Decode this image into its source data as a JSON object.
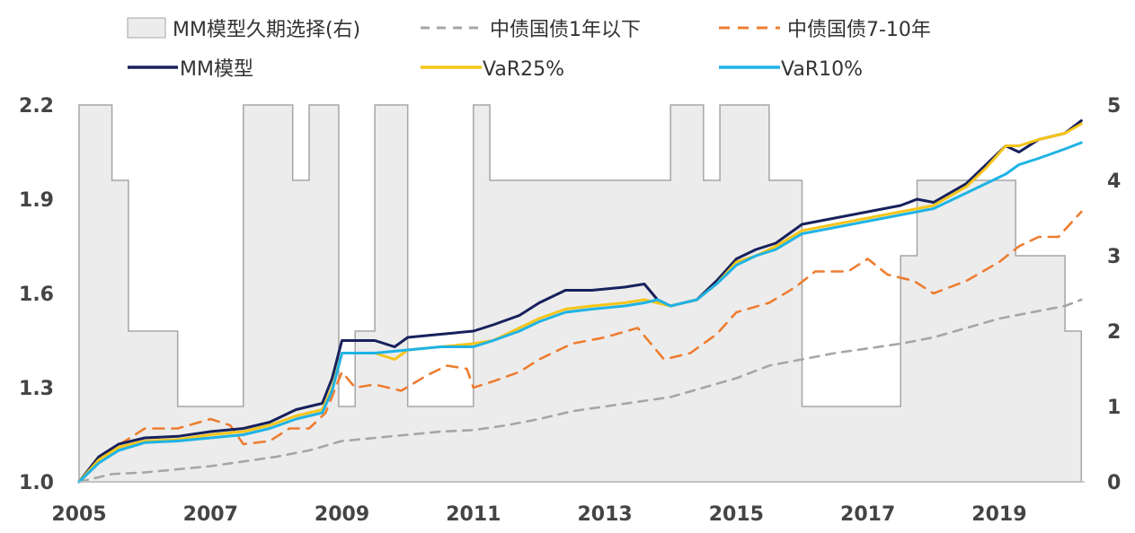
{
  "chart_data": {
    "type": "line",
    "left_axis": {
      "min": 1.0,
      "max": 2.2,
      "ticks": [
        1.0,
        1.3,
        1.6,
        1.9,
        2.2
      ],
      "tick_labels": [
        "1.0",
        "1.3",
        "1.6",
        "1.9",
        "2.2"
      ]
    },
    "right_axis": {
      "min": 0,
      "max": 5,
      "ticks": [
        0,
        1,
        2,
        3,
        4,
        5
      ],
      "tick_labels": [
        "0",
        "1",
        "2",
        "3",
        "4",
        "5"
      ]
    },
    "x_axis": {
      "min": 2005.0,
      "max": 2020.3,
      "ticks": [
        2005,
        2007,
        2009,
        2011,
        2013,
        2015,
        2017,
        2019
      ],
      "tick_labels": [
        "2005",
        "2007",
        "2009",
        "2011",
        "2013",
        "2015",
        "2017",
        "2019"
      ]
    },
    "legend": {
      "placement": "top"
    },
    "series": [
      {
        "name": "MM模型久期选择(右)",
        "kind": "step-area",
        "axis": "right",
        "color": "#ececec",
        "stroke": "#a6a6a6",
        "points": [
          [
            2005.0,
            0
          ],
          [
            2005.0,
            5
          ],
          [
            2005.5,
            5
          ],
          [
            2005.5,
            4
          ],
          [
            2005.75,
            4
          ],
          [
            2005.75,
            2
          ],
          [
            2006.5,
            2
          ],
          [
            2006.5,
            1
          ],
          [
            2007.5,
            1
          ],
          [
            2007.5,
            5
          ],
          [
            2008.25,
            5
          ],
          [
            2008.25,
            4
          ],
          [
            2008.5,
            4
          ],
          [
            2008.5,
            5
          ],
          [
            2008.95,
            5
          ],
          [
            2008.95,
            1
          ],
          [
            2009.2,
            1
          ],
          [
            2009.2,
            2
          ],
          [
            2009.5,
            2
          ],
          [
            2009.5,
            5
          ],
          [
            2010.0,
            5
          ],
          [
            2010.0,
            1
          ],
          [
            2011.0,
            1
          ],
          [
            2011.0,
            5
          ],
          [
            2011.25,
            5
          ],
          [
            2011.25,
            4
          ],
          [
            2014.0,
            4
          ],
          [
            2014.0,
            5
          ],
          [
            2014.5,
            5
          ],
          [
            2014.5,
            4
          ],
          [
            2014.75,
            4
          ],
          [
            2014.75,
            5
          ],
          [
            2015.5,
            5
          ],
          [
            2015.5,
            4
          ],
          [
            2016.0,
            4
          ],
          [
            2016.0,
            1
          ],
          [
            2017.5,
            1
          ],
          [
            2017.5,
            3
          ],
          [
            2017.75,
            3
          ],
          [
            2017.75,
            4
          ],
          [
            2019.25,
            4
          ],
          [
            2019.25,
            3
          ],
          [
            2020.0,
            3
          ],
          [
            2020.0,
            2
          ],
          [
            2020.25,
            2
          ],
          [
            2020.25,
            0
          ]
        ]
      },
      {
        "name": "中债国债1年以下",
        "kind": "line",
        "axis": "left",
        "color": "#a6a6a6",
        "dash": "10,8",
        "points": [
          [
            2005.0,
            1.0
          ],
          [
            2005.5,
            1.025
          ],
          [
            2006.0,
            1.03
          ],
          [
            2006.5,
            1.04
          ],
          [
            2007.0,
            1.05
          ],
          [
            2007.5,
            1.065
          ],
          [
            2008.0,
            1.08
          ],
          [
            2008.5,
            1.1
          ],
          [
            2009.0,
            1.13
          ],
          [
            2009.5,
            1.14
          ],
          [
            2010.0,
            1.15
          ],
          [
            2010.5,
            1.16
          ],
          [
            2011.0,
            1.165
          ],
          [
            2011.5,
            1.18
          ],
          [
            2012.0,
            1.2
          ],
          [
            2012.5,
            1.225
          ],
          [
            2013.0,
            1.24
          ],
          [
            2013.5,
            1.255
          ],
          [
            2014.0,
            1.27
          ],
          [
            2014.5,
            1.3
          ],
          [
            2015.0,
            1.33
          ],
          [
            2015.5,
            1.37
          ],
          [
            2016.0,
            1.39
          ],
          [
            2016.5,
            1.41
          ],
          [
            2017.0,
            1.425
          ],
          [
            2017.5,
            1.44
          ],
          [
            2018.0,
            1.46
          ],
          [
            2018.5,
            1.49
          ],
          [
            2019.0,
            1.52
          ],
          [
            2019.5,
            1.54
          ],
          [
            2020.0,
            1.56
          ],
          [
            2020.25,
            1.58
          ]
        ]
      },
      {
        "name": "中债国债7-10年",
        "kind": "line",
        "axis": "left",
        "color": "#ed7d31",
        "dash": "12,9",
        "points": [
          [
            2005.0,
            1.0
          ],
          [
            2005.3,
            1.08
          ],
          [
            2005.7,
            1.13
          ],
          [
            2006.0,
            1.17
          ],
          [
            2006.5,
            1.17
          ],
          [
            2007.0,
            1.2
          ],
          [
            2007.3,
            1.18
          ],
          [
            2007.5,
            1.12
          ],
          [
            2007.9,
            1.13
          ],
          [
            2008.2,
            1.17
          ],
          [
            2008.5,
            1.17
          ],
          [
            2008.75,
            1.22
          ],
          [
            2009.0,
            1.35
          ],
          [
            2009.2,
            1.3
          ],
          [
            2009.5,
            1.31
          ],
          [
            2009.9,
            1.29
          ],
          [
            2010.3,
            1.34
          ],
          [
            2010.6,
            1.37
          ],
          [
            2010.9,
            1.36
          ],
          [
            2011.0,
            1.3
          ],
          [
            2011.3,
            1.32
          ],
          [
            2011.7,
            1.35
          ],
          [
            2012.0,
            1.39
          ],
          [
            2012.5,
            1.44
          ],
          [
            2013.0,
            1.46
          ],
          [
            2013.5,
            1.49
          ],
          [
            2013.9,
            1.39
          ],
          [
            2014.3,
            1.41
          ],
          [
            2014.7,
            1.47
          ],
          [
            2015.0,
            1.54
          ],
          [
            2015.5,
            1.57
          ],
          [
            2015.9,
            1.62
          ],
          [
            2016.2,
            1.67
          ],
          [
            2016.7,
            1.67
          ],
          [
            2017.0,
            1.71
          ],
          [
            2017.3,
            1.66
          ],
          [
            2017.7,
            1.64
          ],
          [
            2018.0,
            1.6
          ],
          [
            2018.5,
            1.64
          ],
          [
            2019.0,
            1.7
          ],
          [
            2019.3,
            1.75
          ],
          [
            2019.6,
            1.78
          ],
          [
            2019.9,
            1.78
          ],
          [
            2020.25,
            1.86
          ]
        ]
      },
      {
        "name": "MM模型",
        "kind": "line",
        "axis": "left",
        "color": "#17215c",
        "dash": "",
        "points": [
          [
            2005.0,
            1.0
          ],
          [
            2005.3,
            1.08
          ],
          [
            2005.6,
            1.12
          ],
          [
            2006.0,
            1.14
          ],
          [
            2006.5,
            1.145
          ],
          [
            2007.0,
            1.16
          ],
          [
            2007.5,
            1.17
          ],
          [
            2007.9,
            1.19
          ],
          [
            2008.3,
            1.23
          ],
          [
            2008.7,
            1.25
          ],
          [
            2008.85,
            1.33
          ],
          [
            2009.0,
            1.45
          ],
          [
            2009.5,
            1.45
          ],
          [
            2009.8,
            1.43
          ],
          [
            2010.0,
            1.46
          ],
          [
            2010.5,
            1.47
          ],
          [
            2011.0,
            1.48
          ],
          [
            2011.3,
            1.5
          ],
          [
            2011.7,
            1.53
          ],
          [
            2012.0,
            1.57
          ],
          [
            2012.4,
            1.61
          ],
          [
            2012.8,
            1.61
          ],
          [
            2013.3,
            1.62
          ],
          [
            2013.6,
            1.63
          ],
          [
            2013.8,
            1.58
          ],
          [
            2014.0,
            1.56
          ],
          [
            2014.4,
            1.58
          ],
          [
            2014.7,
            1.64
          ],
          [
            2015.0,
            1.71
          ],
          [
            2015.3,
            1.74
          ],
          [
            2015.6,
            1.76
          ],
          [
            2016.0,
            1.82
          ],
          [
            2016.5,
            1.84
          ],
          [
            2017.0,
            1.86
          ],
          [
            2017.5,
            1.88
          ],
          [
            2017.75,
            1.9
          ],
          [
            2018.0,
            1.89
          ],
          [
            2018.5,
            1.95
          ],
          [
            2018.8,
            2.01
          ],
          [
            2019.1,
            2.07
          ],
          [
            2019.3,
            2.05
          ],
          [
            2019.6,
            2.09
          ],
          [
            2020.0,
            2.11
          ],
          [
            2020.25,
            2.15
          ]
        ]
      },
      {
        "name": "VaR25%",
        "kind": "line",
        "axis": "left",
        "color": "#f5c518",
        "dash": "",
        "points": [
          [
            2005.0,
            1.0
          ],
          [
            2005.3,
            1.07
          ],
          [
            2005.6,
            1.11
          ],
          [
            2006.0,
            1.13
          ],
          [
            2006.5,
            1.135
          ],
          [
            2007.0,
            1.15
          ],
          [
            2007.5,
            1.16
          ],
          [
            2007.9,
            1.18
          ],
          [
            2008.3,
            1.21
          ],
          [
            2008.7,
            1.23
          ],
          [
            2008.85,
            1.3
          ],
          [
            2009.0,
            1.41
          ],
          [
            2009.5,
            1.41
          ],
          [
            2009.8,
            1.39
          ],
          [
            2010.0,
            1.42
          ],
          [
            2010.5,
            1.43
          ],
          [
            2011.0,
            1.44
          ],
          [
            2011.3,
            1.45
          ],
          [
            2011.7,
            1.49
          ],
          [
            2012.0,
            1.52
          ],
          [
            2012.4,
            1.55
          ],
          [
            2012.8,
            1.56
          ],
          [
            2013.3,
            1.57
          ],
          [
            2013.6,
            1.58
          ],
          [
            2013.8,
            1.57
          ],
          [
            2014.0,
            1.56
          ],
          [
            2014.4,
            1.58
          ],
          [
            2014.7,
            1.63
          ],
          [
            2015.0,
            1.7
          ],
          [
            2015.3,
            1.72
          ],
          [
            2015.6,
            1.75
          ],
          [
            2016.0,
            1.8
          ],
          [
            2016.5,
            1.82
          ],
          [
            2017.0,
            1.84
          ],
          [
            2017.5,
            1.86
          ],
          [
            2017.75,
            1.87
          ],
          [
            2018.0,
            1.88
          ],
          [
            2018.5,
            1.94
          ],
          [
            2018.8,
            2.0
          ],
          [
            2019.1,
            2.07
          ],
          [
            2019.3,
            2.07
          ],
          [
            2019.6,
            2.09
          ],
          [
            2020.0,
            2.11
          ],
          [
            2020.25,
            2.14
          ]
        ]
      },
      {
        "name": "VaR10%",
        "kind": "line",
        "axis": "left",
        "color": "#1fb3e5",
        "dash": "",
        "points": [
          [
            2005.0,
            1.0
          ],
          [
            2005.3,
            1.06
          ],
          [
            2005.6,
            1.1
          ],
          [
            2006.0,
            1.125
          ],
          [
            2006.5,
            1.13
          ],
          [
            2007.0,
            1.14
          ],
          [
            2007.5,
            1.15
          ],
          [
            2007.9,
            1.17
          ],
          [
            2008.3,
            1.2
          ],
          [
            2008.7,
            1.22
          ],
          [
            2008.85,
            1.29
          ],
          [
            2009.0,
            1.41
          ],
          [
            2009.5,
            1.41
          ],
          [
            2010.0,
            1.42
          ],
          [
            2010.5,
            1.43
          ],
          [
            2011.0,
            1.43
          ],
          [
            2011.3,
            1.45
          ],
          [
            2011.7,
            1.48
          ],
          [
            2012.0,
            1.51
          ],
          [
            2012.4,
            1.54
          ],
          [
            2012.8,
            1.55
          ],
          [
            2013.3,
            1.56
          ],
          [
            2013.6,
            1.57
          ],
          [
            2013.8,
            1.58
          ],
          [
            2014.0,
            1.56
          ],
          [
            2014.4,
            1.58
          ],
          [
            2014.7,
            1.63
          ],
          [
            2015.0,
            1.69
          ],
          [
            2015.3,
            1.72
          ],
          [
            2015.6,
            1.74
          ],
          [
            2016.0,
            1.79
          ],
          [
            2016.5,
            1.81
          ],
          [
            2017.0,
            1.83
          ],
          [
            2017.5,
            1.85
          ],
          [
            2017.75,
            1.86
          ],
          [
            2018.0,
            1.87
          ],
          [
            2018.5,
            1.92
          ],
          [
            2018.8,
            1.95
          ],
          [
            2019.1,
            1.98
          ],
          [
            2019.3,
            2.01
          ],
          [
            2019.6,
            2.03
          ],
          [
            2020.0,
            2.06
          ],
          [
            2020.25,
            2.08
          ]
        ]
      }
    ]
  }
}
